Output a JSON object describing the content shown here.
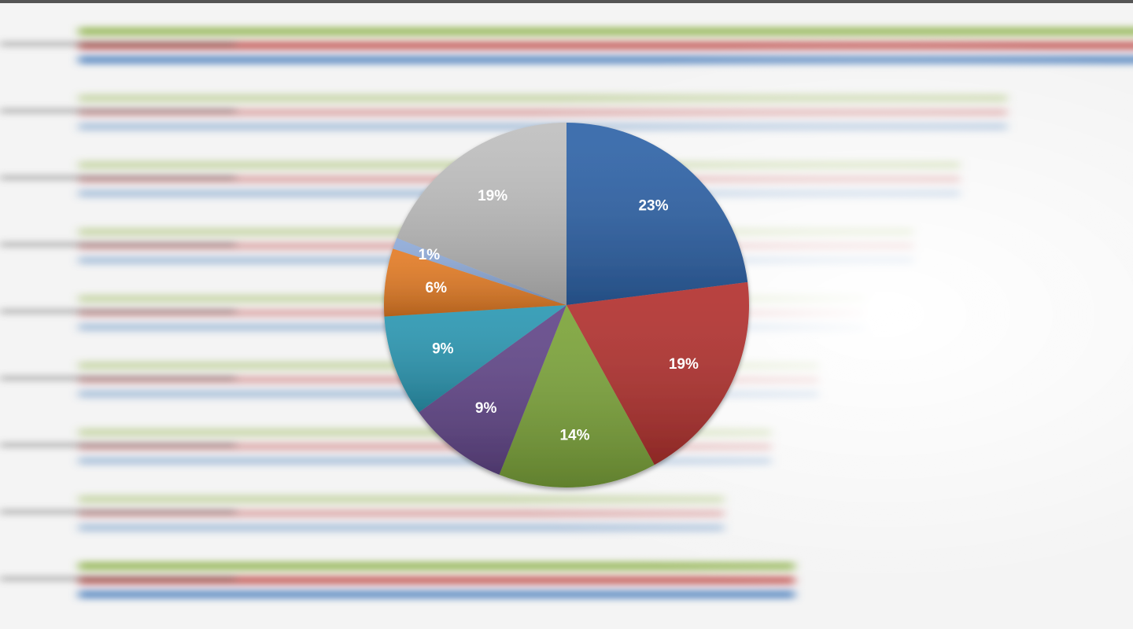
{
  "chart_data": {
    "type": "pie",
    "values": [
      23,
      19,
      14,
      9,
      9,
      6,
      1,
      19
    ],
    "value_labels": [
      "23%",
      "19%",
      "14%",
      "9%",
      "9%",
      "6%",
      "1%",
      "19%"
    ],
    "colors": [
      "#2e63a8",
      "#b3322f",
      "#7ca43a",
      "#624689",
      "#2b98b3",
      "#e47c25",
      "#8eaad8",
      "#bfbfbf"
    ]
  }
}
